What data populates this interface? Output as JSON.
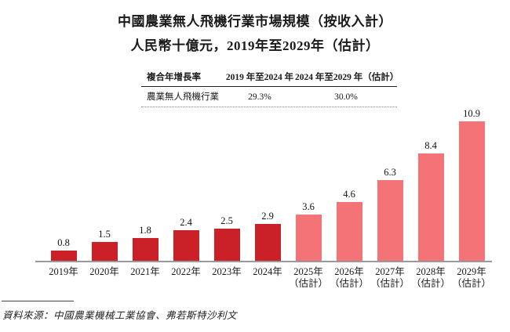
{
  "title": {
    "line1": "中國農業無人飛機行業市場規模（按收入計）",
    "line2": "人民幣十億元，2019年至2029年（估計）"
  },
  "cagr_table": {
    "header": [
      "複合年增長率",
      "2019 年至2024 年",
      "2024 年至2029 年（估計）"
    ],
    "row": [
      "農業無人飛機行業",
      "29.3%",
      "30.0%"
    ]
  },
  "chart_data": {
    "type": "bar",
    "title": "中國農業無人飛機行業市場規模（按收入計）",
    "subtitle": "人民幣十億元，2019年至2029年（估計）",
    "unit": "人民幣十億元",
    "categories": [
      "2019年",
      "2020年",
      "2021年",
      "2022年",
      "2023年",
      "2024年",
      "2025年",
      "2026年",
      "2027年",
      "2028年",
      "2029年"
    ],
    "category_sublabels": [
      "",
      "",
      "",
      "",
      "",
      "",
      "（估計）",
      "（估計）",
      "（估計）",
      "（估計）",
      "（估計）"
    ],
    "values": [
      0.8,
      1.5,
      1.8,
      2.4,
      2.5,
      2.9,
      3.6,
      4.6,
      6.3,
      8.4,
      10.9
    ],
    "estimated": [
      false,
      false,
      false,
      false,
      false,
      false,
      true,
      true,
      true,
      true,
      true
    ],
    "value_labels": [
      "0.8",
      "1.5",
      "1.8",
      "2.4",
      "2.5",
      "2.9",
      "3.6",
      "4.6",
      "6.3",
      "8.4",
      "10.9"
    ],
    "ylim": [
      0,
      10.9
    ],
    "grid": false,
    "legend": "none",
    "cagr_2019_2024": "29.3%",
    "cagr_2024_2029": "30.0%"
  },
  "colors": {
    "bar_actual": "#C92127",
    "bar_estimate": "#F37377",
    "axis": "#9A9A9A"
  },
  "source": {
    "text": "資料來源：中國農業機械工業協會、弗若斯特沙利文"
  }
}
